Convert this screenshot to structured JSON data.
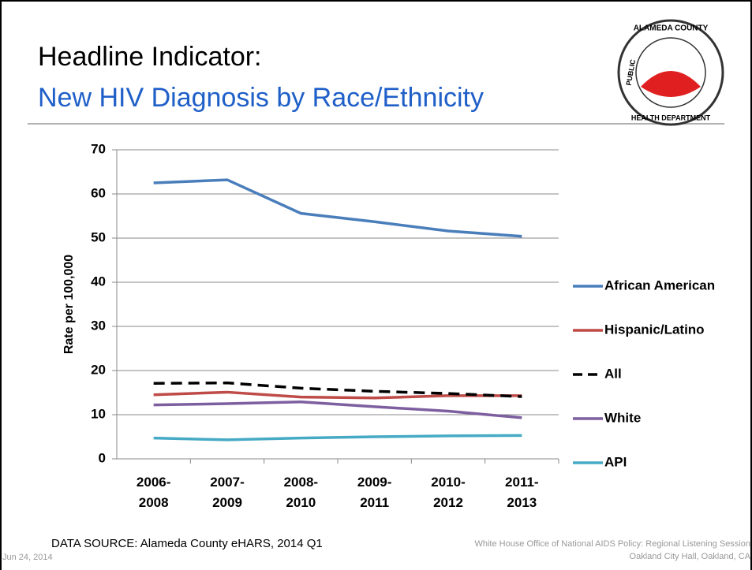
{
  "slide": {
    "title": "Headline Indicator:",
    "subtitle": "New HIV Diagnosis by Race/Ethnicity",
    "logo": [
      "ALAMEDA COUNTY",
      "PUBLIC",
      "HEALTH DEPARTMENT"
    ],
    "source": "DATA SOURCE: Alameda County eHARS, 2014 Q1",
    "date": "Jun 24, 2014",
    "footer": [
      "White House Office of National AIDS Policy:  Regional Listening Session",
      "Oakland City Hall, Oakland, CA"
    ]
  },
  "chart_data": {
    "type": "line",
    "y_label": "Rate per 100,000",
    "categories": [
      "2006-2008",
      "2007-2009",
      "2008-2010",
      "2009-2011",
      "2010-2012",
      "2011-2013"
    ],
    "series": [
      {
        "name": "African American",
        "color": "#4a7ebb",
        "values": [
          62.5,
          63.2,
          55.6,
          53.7,
          51.6,
          50.4
        ]
      },
      {
        "name": "Hispanic/Latino",
        "color": "#be4b48",
        "values": [
          14.5,
          15.1,
          14.0,
          13.8,
          14.3,
          14.3
        ]
      },
      {
        "name": "All",
        "color": "#000000",
        "dashed": true,
        "values": [
          17.1,
          17.2,
          16.0,
          15.3,
          14.8,
          14.1
        ]
      },
      {
        "name": "White",
        "color": "#7d5fa0",
        "values": [
          12.2,
          12.5,
          12.9,
          11.8,
          10.8,
          9.3
        ]
      },
      {
        "name": "API",
        "color": "#46aac5",
        "values": [
          4.7,
          4.3,
          4.7,
          5.0,
          5.2,
          5.3
        ]
      }
    ],
    "ylim": [
      0,
      70
    ],
    "yticks": [
      0,
      10,
      20,
      30,
      40,
      50,
      60,
      70
    ],
    "grid": true,
    "legend": "right"
  }
}
